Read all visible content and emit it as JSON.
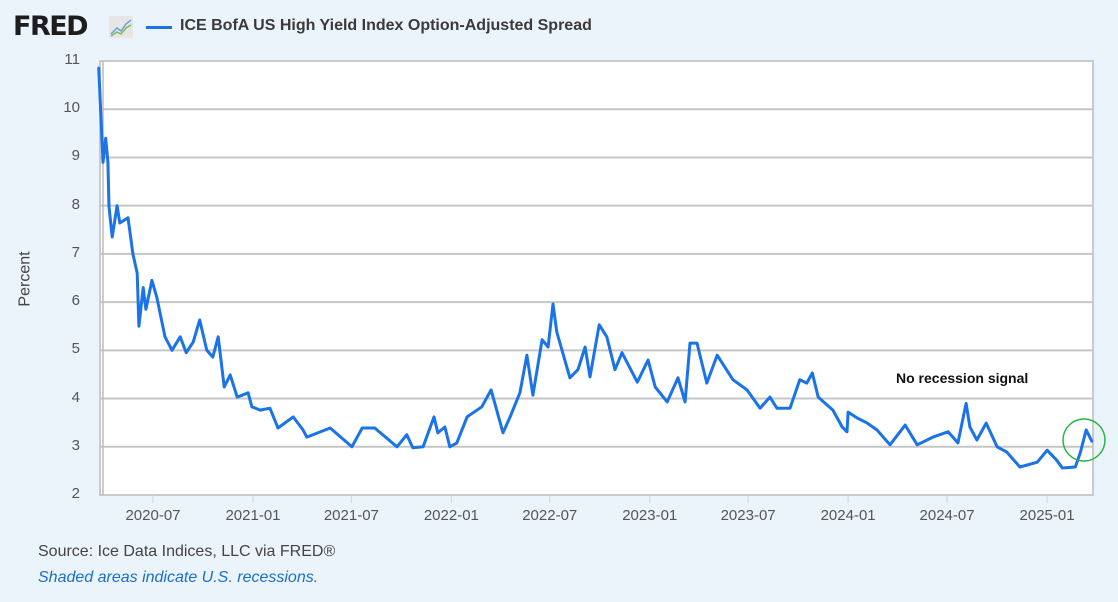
{
  "header": {
    "logo": "FRED",
    "logo_icon": "line-chart-icon",
    "series_title": "ICE BofA US High Yield Index Option-Adjusted Spread"
  },
  "footer": {
    "source": "Source: Ice Data Indices, LLC via FRED®",
    "recession_note": "Shaded areas indicate U.S. recessions."
  },
  "chart_data": {
    "type": "line",
    "title": "ICE BofA US High Yield Index Option-Adjusted Spread",
    "xlabel": "",
    "ylabel": "Percent",
    "ylim": [
      2,
      11
    ],
    "xlim": [
      "2020-03-23",
      "2025-03-25"
    ],
    "grid": true,
    "legend": "top",
    "y_ticks": [
      "2",
      "3",
      "4",
      "5",
      "6",
      "7",
      "8",
      "9",
      "10",
      "11"
    ],
    "x_ticks": [
      "2020-07",
      "2021-01",
      "2021-07",
      "2022-01",
      "2022-07",
      "2023-01",
      "2023-07",
      "2024-01",
      "2024-07",
      "2025-01"
    ],
    "annotation": "No recession signal",
    "highlight": "circle around latest values (early 2025)",
    "colors": {
      "series": "#1a73e8",
      "highlight": "#2db34a"
    },
    "series": [
      {
        "name": "ICE BofA US High Yield Index Option-Adjusted Spread",
        "points": [
          [
            "2020-03-23",
            10.87
          ],
          [
            "2020-03-31",
            8.9
          ],
          [
            "2020-04-05",
            9.4
          ],
          [
            "2020-04-09",
            8.9
          ],
          [
            "2020-04-11",
            7.98
          ],
          [
            "2020-04-17",
            7.35
          ],
          [
            "2020-04-26",
            8.0
          ],
          [
            "2020-05-01",
            7.64
          ],
          [
            "2020-05-16",
            7.75
          ],
          [
            "2020-05-25",
            7.0
          ],
          [
            "2020-06-02",
            6.6
          ],
          [
            "2020-06-05",
            5.5
          ],
          [
            "2020-06-13",
            6.3
          ],
          [
            "2020-06-18",
            5.85
          ],
          [
            "2020-06-29",
            6.45
          ],
          [
            "2020-07-08",
            6.1
          ],
          [
            "2020-07-23",
            5.28
          ],
          [
            "2020-08-05",
            5.0
          ],
          [
            "2020-08-20",
            5.28
          ],
          [
            "2020-08-31",
            4.95
          ],
          [
            "2020-09-13",
            5.17
          ],
          [
            "2020-09-25",
            5.63
          ],
          [
            "2020-10-08",
            5.0
          ],
          [
            "2020-10-19",
            4.86
          ],
          [
            "2020-10-29",
            5.28
          ],
          [
            "2020-11-09",
            4.24
          ],
          [
            "2020-11-20",
            4.49
          ],
          [
            "2020-12-03",
            4.03
          ],
          [
            "2020-12-23",
            4.12
          ],
          [
            "2020-12-30",
            3.83
          ],
          [
            "2021-01-14",
            3.76
          ],
          [
            "2021-02-01",
            3.8
          ],
          [
            "2021-02-16",
            3.39
          ],
          [
            "2021-03-16",
            3.62
          ],
          [
            "2021-04-03",
            3.35
          ],
          [
            "2021-04-10",
            3.2
          ],
          [
            "2021-05-23",
            3.39
          ],
          [
            "2021-07-02",
            3.0
          ],
          [
            "2021-07-21",
            3.39
          ],
          [
            "2021-08-13",
            3.39
          ],
          [
            "2021-09-23",
            3.0
          ],
          [
            "2021-10-11",
            3.25
          ],
          [
            "2021-10-22",
            2.98
          ],
          [
            "2021-11-10",
            3.0
          ],
          [
            "2021-11-30",
            3.62
          ],
          [
            "2021-12-07",
            3.29
          ],
          [
            "2021-12-20",
            3.41
          ],
          [
            "2021-12-29",
            3.0
          ],
          [
            "2022-01-11",
            3.08
          ],
          [
            "2022-01-30",
            3.62
          ],
          [
            "2022-02-26",
            3.83
          ],
          [
            "2022-03-15",
            4.18
          ],
          [
            "2022-04-06",
            3.29
          ],
          [
            "2022-04-19",
            3.62
          ],
          [
            "2022-05-07",
            4.12
          ],
          [
            "2022-05-20",
            4.9
          ],
          [
            "2022-05-31",
            4.07
          ],
          [
            "2022-06-17",
            5.22
          ],
          [
            "2022-06-28",
            5.07
          ],
          [
            "2022-07-07",
            5.96
          ],
          [
            "2022-07-14",
            5.38
          ],
          [
            "2022-08-07",
            4.43
          ],
          [
            "2022-08-22",
            4.6
          ],
          [
            "2022-09-04",
            5.07
          ],
          [
            "2022-09-13",
            4.45
          ],
          [
            "2022-09-30",
            5.53
          ],
          [
            "2022-10-14",
            5.28
          ],
          [
            "2022-10-29",
            4.6
          ],
          [
            "2022-11-11",
            4.95
          ],
          [
            "2022-12-09",
            4.34
          ],
          [
            "2022-12-29",
            4.8
          ],
          [
            "2023-01-11",
            4.24
          ],
          [
            "2023-02-02",
            3.93
          ],
          [
            "2023-02-22",
            4.43
          ],
          [
            "2023-03-07",
            3.93
          ],
          [
            "2023-03-16",
            5.15
          ],
          [
            "2023-03-29",
            5.15
          ],
          [
            "2023-04-16",
            4.32
          ],
          [
            "2023-05-05",
            4.9
          ],
          [
            "2023-06-03",
            4.39
          ],
          [
            "2023-06-29",
            4.18
          ],
          [
            "2023-07-23",
            3.8
          ],
          [
            "2023-08-10",
            4.03
          ],
          [
            "2023-08-23",
            3.8
          ],
          [
            "2023-09-16",
            3.8
          ],
          [
            "2023-10-04",
            4.39
          ],
          [
            "2023-10-17",
            4.32
          ],
          [
            "2023-10-27",
            4.53
          ],
          [
            "2023-11-07",
            4.03
          ],
          [
            "2023-12-04",
            3.76
          ],
          [
            "2023-12-21",
            3.41
          ],
          [
            "2023-12-30",
            3.31
          ],
          [
            "2024-01-01",
            3.72
          ],
          [
            "2024-01-17",
            3.6
          ],
          [
            "2024-02-05",
            3.49
          ],
          [
            "2024-02-23",
            3.35
          ],
          [
            "2024-03-18",
            3.04
          ],
          [
            "2024-04-15",
            3.45
          ],
          [
            "2024-05-07",
            3.04
          ],
          [
            "2024-06-05",
            3.2
          ],
          [
            "2024-07-03",
            3.31
          ],
          [
            "2024-07-21",
            3.08
          ],
          [
            "2024-08-05",
            3.9
          ],
          [
            "2024-08-12",
            3.41
          ],
          [
            "2024-08-25",
            3.14
          ],
          [
            "2024-09-11",
            3.49
          ],
          [
            "2024-10-01",
            3.0
          ],
          [
            "2024-10-19",
            2.89
          ],
          [
            "2024-11-12",
            2.58
          ],
          [
            "2024-12-14",
            2.68
          ],
          [
            "2025-01-01",
            2.93
          ],
          [
            "2025-01-19",
            2.72
          ],
          [
            "2025-01-29",
            2.56
          ],
          [
            "2025-02-22",
            2.58
          ],
          [
            "2025-03-03",
            2.87
          ],
          [
            "2025-03-14",
            3.35
          ],
          [
            "2025-03-25",
            3.1
          ]
        ]
      }
    ]
  }
}
